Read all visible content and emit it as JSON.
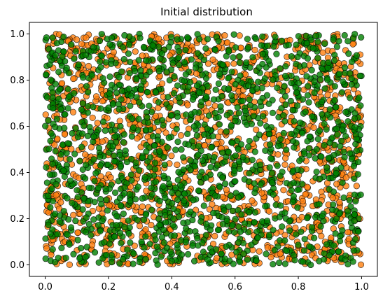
{
  "chart_data": {
    "type": "scatter",
    "title": "Initial distribution",
    "xlabel": "",
    "ylabel": "",
    "xlim": [
      -0.05,
      1.05
    ],
    "ylim": [
      -0.05,
      1.05
    ],
    "xticks": [
      0.0,
      0.2,
      0.4,
      0.6,
      0.8,
      1.0
    ],
    "yticks": [
      0.0,
      0.2,
      0.4,
      0.6,
      0.8,
      1.0
    ],
    "xtick_labels": [
      "0.0",
      "0.2",
      "0.4",
      "0.6",
      "0.8",
      "1.0"
    ],
    "ytick_labels": [
      "0.0",
      "0.2",
      "0.4",
      "0.6",
      "0.8",
      "1.0"
    ],
    "grid": false,
    "legend": "none",
    "distribution": "uniform on [0, 1] x [0, 1]",
    "series": [
      {
        "color": "#ff7f0e",
        "edgecolor": "#000000",
        "alpha": 0.8,
        "count": 1500,
        "x_range": [
          0,
          1
        ],
        "y_range": [
          0,
          1
        ]
      },
      {
        "color": "#008000",
        "edgecolor": "#000000",
        "alpha": 0.8,
        "count": 1500,
        "x_range": [
          0,
          1
        ],
        "y_range": [
          0,
          1
        ]
      }
    ]
  }
}
